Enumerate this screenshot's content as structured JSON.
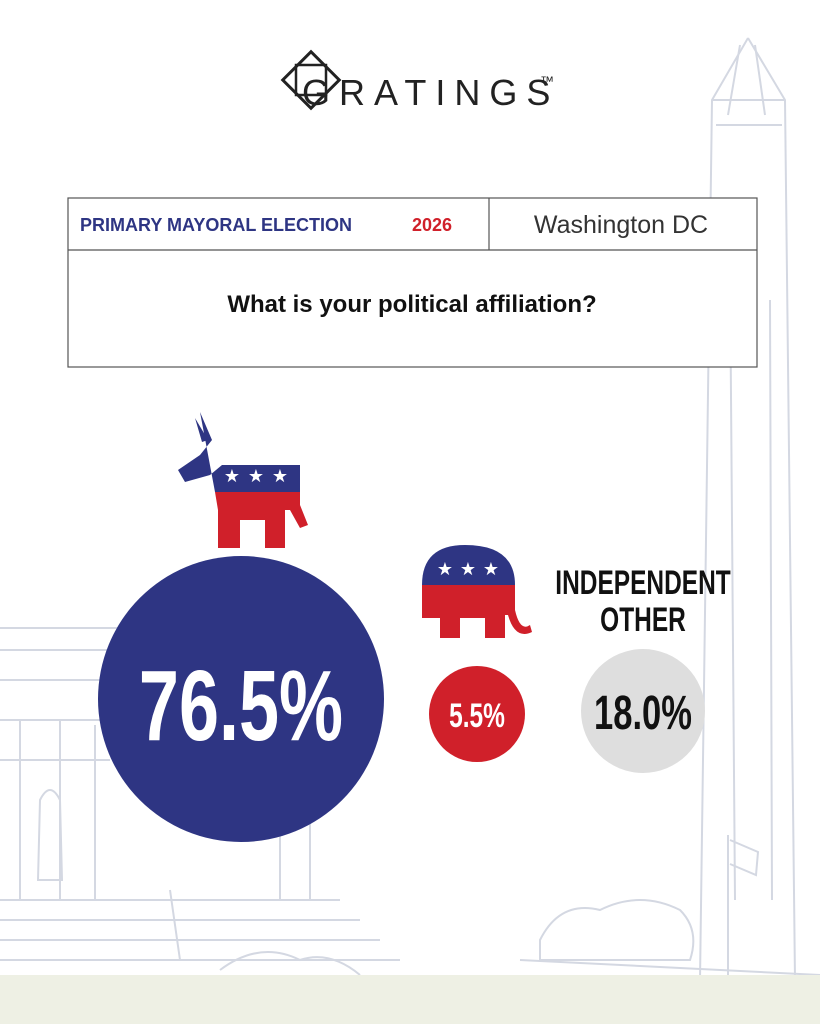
{
  "logo": {
    "name": "GRATINGS",
    "mark": "™"
  },
  "header": {
    "election": "PRIMARY MAYORAL ELECTION",
    "year": "2026",
    "location": "Washington DC"
  },
  "question": "What is your political affiliation?",
  "results": [
    {
      "value": "76.5%"
    },
    {
      "value": "5.5%"
    },
    {
      "labels": [
        "INDEPENDENT",
        "OTHER"
      ],
      "value": "18.0%"
    }
  ]
}
